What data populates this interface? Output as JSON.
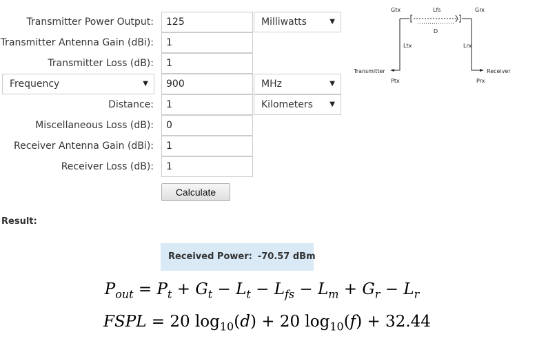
{
  "form": {
    "transmitter_power": {
      "label": "Transmitter Power Output:",
      "value": "125",
      "unit": "Milliwatts"
    },
    "tx_antenna_gain": {
      "label": "Transmitter Antenna Gain (dBi):",
      "value": "1"
    },
    "tx_loss": {
      "label": "Transmitter Loss (dB):",
      "value": "1"
    },
    "frequency": {
      "selector": "Frequency",
      "value": "900",
      "unit": "MHz"
    },
    "distance": {
      "label": "Distance:",
      "value": "1",
      "unit": "Kilometers"
    },
    "misc_loss": {
      "label": "Miscellaneous Loss (dB):",
      "value": "0"
    },
    "rx_antenna_gain": {
      "label": "Receiver Antenna Gain (dBi):",
      "value": "1"
    },
    "rx_loss": {
      "label": "Receiver Loss (dB):",
      "value": "1"
    },
    "calculate_label": "Calculate"
  },
  "result": {
    "heading": "Result:",
    "label": "Received Power:",
    "value": "-70.57 dBm"
  },
  "diagram": {
    "gtx": "Gtx",
    "lfs": "Lfs",
    "grx": "Grx",
    "d": "D",
    "ltx": "Ltx",
    "lrx": "Lrx",
    "transmitter": "Transmitter",
    "receiver": "Receiver",
    "ptx": "Ptx",
    "prx": "Prx"
  },
  "formulas": {
    "pout": "Pout = Pt + Gt − Lt − Lfs − Lm + Gr − Lr",
    "fspl": "FSPL = 20 log10(d) + 20 log10(f) + 32.44"
  }
}
